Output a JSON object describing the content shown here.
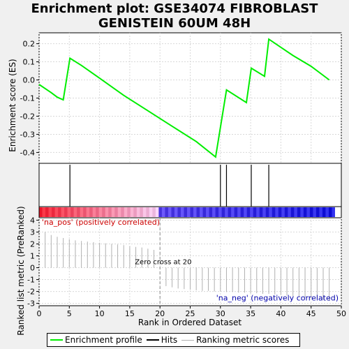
{
  "title_line1": "Enrichment plot: GSE34074 FIBROBLAST",
  "title_line2": "GENISTEIN 60UM 48H",
  "colors": {
    "enrichment": "#00ee00",
    "hits": "#000000",
    "ranking": "#b0b0b0",
    "pos_label": "#cc0000",
    "neg_label": "#0000aa"
  },
  "chart_data": [
    {
      "type": "line",
      "name": "enrichment-profile",
      "ylabel": "Enrichment score (ES)",
      "xlim": [
        0,
        50
      ],
      "ylim": [
        -0.46,
        0.26
      ],
      "yticks": [
        -0.4,
        -0.3,
        -0.2,
        -0.1,
        0.0,
        0.1,
        0.2
      ],
      "ytick_labels": [
        "-0.4",
        "-0.3",
        "-0.2",
        "-0.1",
        "0.0",
        "0.1",
        "0.2"
      ],
      "grid": true,
      "points": [
        [
          0,
          -0.025
        ],
        [
          2,
          -0.07
        ],
        [
          3,
          -0.095
        ],
        [
          4,
          -0.11
        ],
        [
          5.1,
          0.12
        ],
        [
          7,
          0.08
        ],
        [
          10,
          0.01
        ],
        [
          14,
          -0.085
        ],
        [
          18,
          -0.17
        ],
        [
          22,
          -0.255
        ],
        [
          26,
          -0.34
        ],
        [
          29.2,
          -0.425
        ],
        [
          31,
          -0.055
        ],
        [
          34.3,
          -0.125
        ],
        [
          35.1,
          0.065
        ],
        [
          37.3,
          0.02
        ],
        [
          38,
          0.225
        ],
        [
          40,
          0.18
        ],
        [
          42,
          0.135
        ],
        [
          45,
          0.075
        ],
        [
          48,
          0.0
        ]
      ]
    },
    {
      "type": "hits",
      "name": "hits",
      "x": [
        5.1,
        30,
        31,
        35.1,
        38
      ]
    },
    {
      "type": "bar",
      "name": "ranking-metric-scores",
      "xlabel": "Rank in Ordered Dataset",
      "ylabel": "Ranked list metric (PreRanked)",
      "xlim": [
        0,
        50
      ],
      "ylim": [
        -3.2,
        4.2
      ],
      "yticks": [
        -3,
        -2,
        -1,
        0,
        1,
        2,
        3,
        4
      ],
      "ytick_labels": [
        "-3",
        "-2",
        "-1",
        "0",
        "1",
        "2",
        "3",
        "4"
      ],
      "xticks": [
        0,
        5,
        10,
        15,
        20,
        25,
        30,
        35,
        40,
        45,
        50
      ],
      "xtick_labels": [
        "0",
        "5",
        "10",
        "15",
        "20",
        "25",
        "30",
        "35",
        "40",
        "45",
        "50"
      ],
      "x": [
        1,
        2,
        3,
        4,
        5,
        6,
        7,
        8,
        9,
        10,
        11,
        12,
        13,
        14,
        15,
        16,
        17,
        18,
        19,
        20,
        21,
        22,
        23,
        24,
        25,
        26,
        27,
        28,
        29,
        30,
        31,
        32,
        33,
        34,
        35,
        36,
        37,
        38,
        39,
        40,
        41,
        42,
        43,
        44,
        45,
        46,
        47,
        48
      ],
      "values": [
        3.0,
        2.75,
        2.6,
        2.5,
        2.4,
        2.3,
        2.25,
        2.2,
        2.15,
        2.1,
        2.05,
        2.0,
        1.95,
        1.9,
        1.8,
        1.75,
        1.7,
        1.6,
        1.5,
        0.0,
        -1.55,
        -1.65,
        -1.75,
        -1.8,
        -1.85,
        -1.9,
        -1.95,
        -1.95,
        -2.0,
        -2.0,
        -2.05,
        -2.05,
        -2.1,
        -2.1,
        -2.15,
        -2.15,
        -2.2,
        -2.2,
        -2.25,
        -2.3,
        -2.35,
        -2.4,
        -2.45,
        -2.5,
        -2.55,
        -2.6,
        -2.7,
        -2.8
      ],
      "zero_cross": 20,
      "zero_cross_label": "Zero cross at 20",
      "pos_label": "'na_pos' (positively correlated)",
      "neg_label": "'na_neg' (negatively correlated)"
    }
  ],
  "legend": {
    "enrichment": "Enrichment profile",
    "hits": "Hits",
    "ranking": "Ranking metric scores"
  }
}
